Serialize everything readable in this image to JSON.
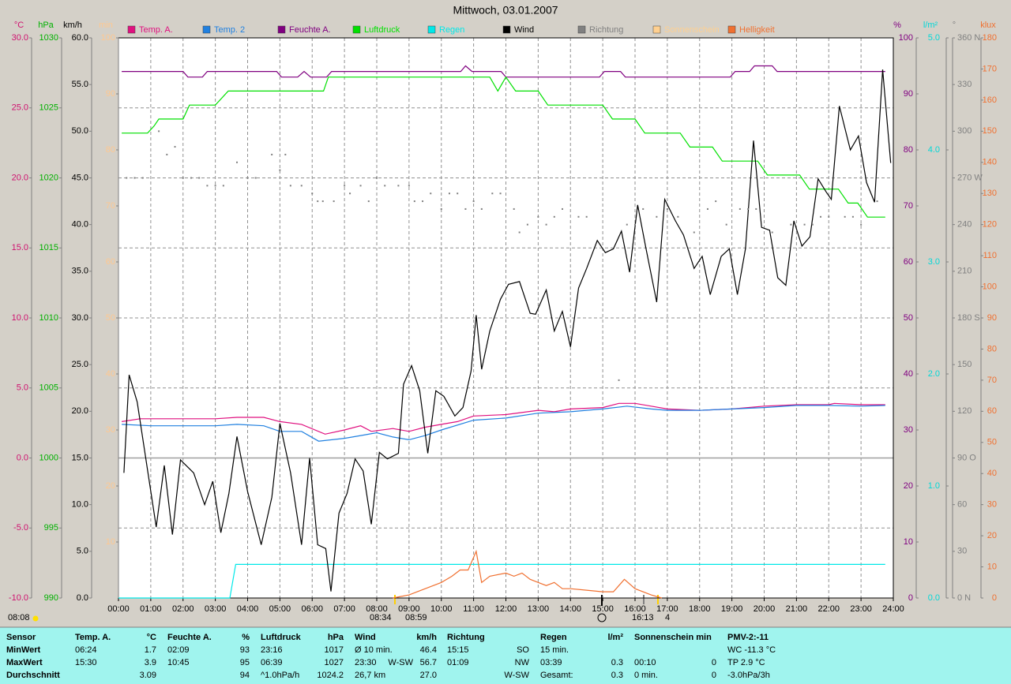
{
  "chart_data": {
    "type": "line",
    "title": "Mittwoch, 03.01.2007",
    "xlim": [
      0,
      24
    ],
    "xticks": [
      {
        "value": 0,
        "label": "00:00"
      },
      {
        "value": 1,
        "label": "01:00"
      },
      {
        "value": 2,
        "label": "02:00"
      },
      {
        "value": 3,
        "label": "03:00"
      },
      {
        "value": 4,
        "label": "04:00"
      },
      {
        "value": 5,
        "label": "05:00"
      },
      {
        "value": 6,
        "label": "06:00"
      },
      {
        "value": 7,
        "label": "07:00"
      },
      {
        "value": 8,
        "label": "08:00"
      },
      {
        "value": 9,
        "label": "09:00"
      },
      {
        "value": 10,
        "label": "10:00"
      },
      {
        "value": 11,
        "label": "11:00"
      },
      {
        "value": 12,
        "label": "12:00"
      },
      {
        "value": 13,
        "label": "13:00"
      },
      {
        "value": 14,
        "label": "14:00"
      },
      {
        "value": 15,
        "label": "15:00"
      },
      {
        "value": 16,
        "label": "16:00"
      },
      {
        "value": 17,
        "label": "17:00"
      },
      {
        "value": 18,
        "label": "18:00"
      },
      {
        "value": 19,
        "label": "19:00"
      },
      {
        "value": 20,
        "label": "20:00"
      },
      {
        "value": 21,
        "label": "21:00"
      },
      {
        "value": 22,
        "label": "22:00"
      },
      {
        "value": 23,
        "label": "23:00"
      },
      {
        "value": 24,
        "label": "24:00"
      }
    ],
    "grid": true,
    "axes": [
      {
        "unit": "°C",
        "color": "#d0106f",
        "side": "left",
        "lim": [
          -10,
          30
        ],
        "ticks": [
          {
            "value": -10,
            "label": "-10.0"
          },
          {
            "value": -5,
            "label": "-5.0"
          },
          {
            "value": 0,
            "label": "0.0"
          },
          {
            "value": 5,
            "label": "5.0"
          },
          {
            "value": 10,
            "label": "10.0"
          },
          {
            "value": 15,
            "label": "15.0"
          },
          {
            "value": 20,
            "label": "20.0"
          },
          {
            "value": 25,
            "label": "25.0"
          },
          {
            "value": 30,
            "label": "30.0"
          }
        ]
      },
      {
        "unit": "hPa",
        "color": "#00b000",
        "side": "left",
        "lim": [
          990,
          1030
        ],
        "ticks": [
          990,
          995,
          1000,
          1005,
          1010,
          1015,
          1020,
          1025,
          1030
        ]
      },
      {
        "unit": "km/h",
        "color": "#000000",
        "side": "left",
        "lim": [
          0,
          60
        ],
        "ticks": [
          {
            "value": 0,
            "label": "0.0"
          },
          {
            "value": 5,
            "label": "5.0"
          },
          {
            "value": 10,
            "label": "10.0"
          },
          {
            "value": 15,
            "label": "15.0"
          },
          {
            "value": 20,
            "label": "20.0"
          },
          {
            "value": 25,
            "label": "25.0"
          },
          {
            "value": 30,
            "label": "30.0"
          },
          {
            "value": 35,
            "label": "35.0"
          },
          {
            "value": 40,
            "label": "40.0"
          },
          {
            "value": 45,
            "label": "45.0"
          },
          {
            "value": 50,
            "label": "50.0"
          },
          {
            "value": 55,
            "label": "55.0"
          },
          {
            "value": 60,
            "label": "60.0"
          }
        ]
      },
      {
        "unit": "min",
        "color": "#ffc890",
        "side": "left",
        "lim": [
          0,
          100
        ],
        "ticks": [
          10,
          20,
          30,
          40,
          50,
          60,
          70,
          80,
          90,
          100
        ]
      },
      {
        "unit": "%",
        "color": "#800080",
        "side": "right",
        "lim": [
          0,
          100
        ],
        "ticks": [
          0,
          10,
          20,
          30,
          40,
          50,
          60,
          70,
          80,
          90,
          100
        ]
      },
      {
        "unit": "l/m²",
        "color": "#00d8d8",
        "side": "right",
        "lim": [
          0,
          5
        ],
        "ticks": [
          {
            "value": 0,
            "label": "0.0"
          },
          {
            "value": 1,
            "label": "1.0"
          },
          {
            "value": 2,
            "label": "2.0"
          },
          {
            "value": 3,
            "label": "3.0"
          },
          {
            "value": 4,
            "label": "4.0"
          },
          {
            "value": 5,
            "label": "5.0"
          }
        ]
      },
      {
        "unit": "°",
        "color": "#808080",
        "side": "right",
        "lim": [
          0,
          360
        ],
        "ticks": [
          {
            "value": 0,
            "label": "0 N"
          },
          30,
          60,
          {
            "value": 90,
            "label": "90 O"
          },
          120,
          150,
          {
            "value": 180,
            "label": "180 S"
          },
          210,
          240,
          {
            "value": 270,
            "label": "270 W"
          },
          300,
          330,
          {
            "value": 360,
            "label": "360 N"
          }
        ]
      },
      {
        "unit": "klux",
        "color": "#f07030",
        "side": "right",
        "lim": [
          0,
          180
        ],
        "ticks": [
          0,
          10,
          20,
          30,
          40,
          50,
          60,
          70,
          80,
          90,
          100,
          110,
          120,
          130,
          140,
          150,
          160,
          170,
          180
        ]
      }
    ],
    "series": [
      {
        "name": "Temp. A.",
        "color": "#e0107f",
        "axis": 0,
        "style": "line",
        "x": [
          0.1,
          0.67,
          3.0,
          3.67,
          4.5,
          5.0,
          5.67,
          6.4,
          7.0,
          7.5,
          7.83,
          8.5,
          9.0,
          9.5,
          10.0,
          10.5,
          11.0,
          12.0,
          13.0,
          13.5,
          14.0,
          15.0,
          15.5,
          16.0,
          16.5,
          17.0,
          18.0,
          19.0,
          20.0,
          21.0,
          22.0,
          22.17,
          23.0,
          23.75
        ],
        "values": [
          2.6,
          2.8,
          2.8,
          2.9,
          2.9,
          2.6,
          2.4,
          1.7,
          2.0,
          2.3,
          1.9,
          2.1,
          1.9,
          2.2,
          2.4,
          2.6,
          3.0,
          3.1,
          3.4,
          3.3,
          3.5,
          3.6,
          3.9,
          3.9,
          3.7,
          3.5,
          3.4,
          3.5,
          3.7,
          3.8,
          3.8,
          3.9,
          3.8,
          3.8
        ]
      },
      {
        "name": "Temp. 2",
        "color": "#2080e0",
        "axis": 0,
        "style": "line",
        "x": [
          0.1,
          1.0,
          3.0,
          3.67,
          4.5,
          5.0,
          5.67,
          6.2,
          7.0,
          7.5,
          8.0,
          8.5,
          9.0,
          9.5,
          10.0,
          11.0,
          12.0,
          13.0,
          14.0,
          15.0,
          15.75,
          16.5,
          17.0,
          18.0,
          19.0,
          20.0,
          21.0,
          22.0,
          23.0,
          23.75
        ],
        "values": [
          2.4,
          2.3,
          2.3,
          2.4,
          2.3,
          1.9,
          1.9,
          1.2,
          1.4,
          1.6,
          1.8,
          1.5,
          1.3,
          1.6,
          2.0,
          2.7,
          2.85,
          3.2,
          3.3,
          3.5,
          3.7,
          3.5,
          3.4,
          3.4,
          3.5,
          3.6,
          3.75,
          3.75,
          3.7,
          3.75
        ]
      },
      {
        "name": "Feuchte A.",
        "color": "#800080",
        "axis": 4,
        "style": "line",
        "x": [
          0.1,
          2.0,
          2.15,
          2.6,
          2.75,
          4.9,
          5.05,
          5.55,
          5.75,
          5.95,
          6.45,
          6.6,
          10.6,
          10.75,
          10.95,
          11.85,
          12.0,
          14.9,
          15.05,
          15.55,
          15.7,
          18.95,
          19.1,
          19.55,
          19.7,
          20.25,
          20.4,
          23.75
        ],
        "values": [
          94,
          94,
          93,
          93,
          94,
          94,
          93,
          93,
          94,
          93,
          93,
          94,
          94,
          95,
          94,
          94,
          93,
          93,
          94,
          94,
          93,
          93,
          94,
          94,
          95,
          95,
          94,
          94
        ]
      },
      {
        "name": "Luftdruck",
        "color": "#00e000",
        "axis": 1,
        "style": "line",
        "x": [
          0.1,
          0.9,
          1.1,
          1.25,
          2.0,
          2.2,
          3.0,
          3.4,
          6.35,
          6.5,
          11.5,
          11.75,
          12.0,
          12.3,
          13.0,
          13.3,
          15.0,
          15.3,
          16.0,
          16.3,
          17.4,
          17.7,
          18.4,
          18.7,
          19.8,
          20.1,
          21.1,
          21.4,
          22.3,
          22.6,
          22.9,
          23.2,
          23.75
        ],
        "values": [
          1023.2,
          1023.2,
          1023.7,
          1024.2,
          1024.2,
          1025.2,
          1025.2,
          1026.2,
          1026.2,
          1027.2,
          1027.2,
          1026.2,
          1027.2,
          1026.2,
          1026.2,
          1025.2,
          1025.2,
          1024.2,
          1024.2,
          1023.2,
          1023.2,
          1022.2,
          1022.2,
          1021.2,
          1021.2,
          1020.2,
          1020.2,
          1019.2,
          1019.2,
          1018.2,
          1018.2,
          1017.2,
          1017.2
        ]
      },
      {
        "name": "Regen",
        "color": "#00e8e8",
        "axis": 5,
        "style": "line",
        "x": [
          0,
          3.45,
          3.63,
          23.75
        ],
        "values": [
          0,
          0,
          0.3,
          0.3
        ]
      },
      {
        "name": "Wind",
        "color": "#000000",
        "axis": 2,
        "style": "line",
        "x": [
          0.17,
          0.33,
          0.58,
          1.17,
          1.42,
          1.67,
          1.92,
          2.33,
          2.67,
          2.92,
          3.17,
          3.42,
          3.67,
          4.0,
          4.42,
          4.75,
          5.0,
          5.33,
          5.67,
          5.92,
          6.17,
          6.42,
          6.58,
          6.83,
          7.08,
          7.33,
          7.58,
          7.83,
          8.08,
          8.33,
          8.67,
          8.83,
          9.08,
          9.33,
          9.58,
          9.83,
          10.08,
          10.42,
          10.67,
          10.92,
          11.08,
          11.25,
          11.5,
          11.83,
          12.08,
          12.42,
          12.75,
          12.92,
          13.25,
          13.5,
          13.75,
          14.0,
          14.25,
          14.5,
          14.83,
          15.08,
          15.33,
          15.58,
          15.83,
          16.08,
          16.33,
          16.67,
          16.92,
          17.25,
          17.5,
          17.83,
          18.08,
          18.33,
          18.67,
          18.92,
          19.17,
          19.42,
          19.67,
          19.92,
          20.17,
          20.42,
          20.67,
          20.92,
          21.17,
          21.42,
          21.67,
          21.92,
          22.08,
          22.33,
          22.67,
          22.92,
          23.17,
          23.42,
          23.67,
          23.92
        ],
        "values": [
          13.4,
          23.9,
          21.0,
          7.6,
          14.2,
          6.8,
          14.8,
          13.4,
          10.0,
          12.5,
          7.0,
          11.2,
          17.3,
          11.4,
          5.7,
          10.8,
          18.7,
          13.4,
          5.7,
          15.0,
          5.7,
          5.3,
          0.7,
          9.1,
          11.2,
          14.9,
          13.6,
          7.9,
          15.6,
          14.9,
          15.5,
          22.9,
          24.9,
          22.2,
          15.5,
          22.2,
          21.6,
          19.5,
          20.4,
          24.3,
          30.3,
          24.5,
          28.6,
          32.0,
          33.6,
          33.9,
          30.5,
          30.4,
          33.0,
          28.6,
          30.7,
          26.9,
          33.2,
          35.3,
          38.3,
          37.0,
          37.4,
          39.3,
          34.9,
          42.1,
          37.6,
          31.7,
          42.7,
          40.4,
          38.9,
          35.3,
          36.6,
          32.5,
          36.6,
          37.4,
          32.5,
          37.4,
          49.0,
          39.7,
          39.4,
          34.3,
          33.5,
          40.4,
          37.7,
          38.7,
          44.9,
          43.5,
          42.7,
          52.7,
          48.0,
          49.5,
          44.5,
          42.4,
          56.6,
          46.6
        ]
      },
      {
        "name": "Richtung",
        "color": "#808080",
        "axis": 6,
        "style": "dots",
        "x": [
          0.25,
          0.5,
          0.75,
          1.25,
          1.5,
          1.75,
          2.0,
          2.25,
          2.5,
          2.75,
          3.0,
          3.25,
          3.67,
          4.0,
          4.25,
          4.75,
          5.0,
          5.17,
          5.33,
          5.67,
          6.0,
          6.17,
          6.33,
          6.67,
          7.0,
          7.17,
          7.5,
          7.75,
          8.0,
          8.25,
          8.67,
          9.0,
          9.17,
          9.42,
          9.67,
          10.0,
          10.25,
          10.5,
          10.75,
          11.0,
          11.25,
          11.58,
          11.83,
          12.25,
          12.42,
          12.67,
          13.0,
          13.25,
          13.5,
          13.75,
          14.25,
          14.5,
          15.5,
          15.75,
          16.0,
          16.25,
          16.67,
          17.0,
          17.33,
          17.83,
          18.25,
          18.5,
          18.83,
          19.25,
          19.5,
          19.75,
          20.25,
          20.83,
          21.25,
          21.5,
          21.75,
          22.0,
          22.5,
          22.75,
          23.0,
          23.5
        ],
        "values": [
          270,
          270,
          270,
          300,
          285,
          290,
          270,
          270,
          270,
          265,
          265,
          265,
          280,
          270,
          270,
          285,
          275,
          285,
          265,
          265,
          260,
          255,
          255,
          255,
          265,
          260,
          265,
          255,
          270,
          265,
          265,
          265,
          255,
          255,
          260,
          250,
          260,
          260,
          250,
          255,
          250,
          260,
          260,
          250,
          235,
          240,
          245,
          240,
          245,
          250,
          245,
          245,
          140,
          240,
          240,
          250,
          245,
          250,
          245,
          235,
          250,
          255,
          240,
          250,
          250,
          250,
          235,
          240,
          240,
          240,
          245,
          245,
          245,
          245,
          240,
          255
        ]
      },
      {
        "name": "Sonnenschein",
        "color": "#ffd090",
        "axis": 3,
        "style": "line",
        "x": [],
        "values": []
      },
      {
        "name": "Helligkeit",
        "color": "#f07030",
        "axis": 7,
        "style": "line",
        "x": [
          8.5,
          9.0,
          9.5,
          10.0,
          10.33,
          10.58,
          10.83,
          11.08,
          11.25,
          11.5,
          12.0,
          12.25,
          12.5,
          12.75,
          13.0,
          13.25,
          13.5,
          13.75,
          14.0,
          14.5,
          15.0,
          15.33,
          15.5,
          15.67,
          16.0,
          16.5,
          16.83
        ],
        "values": [
          0,
          1,
          3,
          5,
          7,
          9,
          9,
          15,
          5,
          7,
          8,
          7,
          8,
          6,
          5,
          4,
          5,
          3,
          3,
          2.5,
          2,
          2,
          4,
          6,
          3,
          1,
          0
        ]
      }
    ]
  },
  "annotations": [
    "08:08",
    "08:34",
    "08:59",
    "16:13",
    "4"
  ],
  "table": {
    "rows": [
      [
        "Sensor",
        "Temp. A.",
        "°C",
        "Feuchte A.",
        "%",
        "Luftdruck",
        "hPa",
        "Wind",
        null,
        "km/h",
        "Richtung",
        null,
        "Regen",
        "l/m²",
        "Sonnenschein min",
        null,
        "PMV-2:-11"
      ],
      [
        "MinWert",
        "06:24",
        "1.7",
        "02:09",
        "93",
        "23:16",
        "1017",
        "Ø 10 min.",
        null,
        "46.4",
        "15:15",
        "SO",
        "15 min.",
        null,
        null,
        null,
        "WC -11.3 °C"
      ],
      [
        "MaxWert",
        "15:30",
        "3.9",
        "10:45",
        "95",
        "06:39",
        "1027",
        "23:30",
        "W-SW",
        "56.7",
        "01:09",
        "NW",
        "03:39",
        "0.3",
        "00:10",
        "0",
        "TP 2.9 °C"
      ],
      [
        "Durchschnitt",
        null,
        "3.09",
        null,
        "94",
        "^1.0hPa/h",
        "1024.2",
        "26,7 km",
        null,
        "27.0",
        null,
        "W-SW",
        "Gesamt:",
        "0.3",
        "0 min.",
        "0",
        "-3.0hPa/3h"
      ]
    ]
  }
}
